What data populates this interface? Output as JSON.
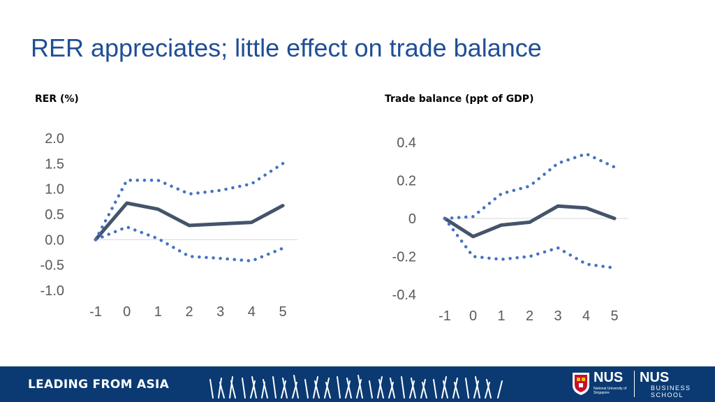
{
  "title": "RER appreciates; little effect on trade balance",
  "colors": {
    "title": "#1f4e97",
    "line": "#44546a",
    "band": "#4472c4",
    "footer": "#0b3a73"
  },
  "footer": {
    "tagline": "LEADING FROM ASIA",
    "nus_word": "NUS",
    "nus_subtitle": "National University of Singapore",
    "school_word": "NUS",
    "school_subtitle": "BUSINESS SCHOOL"
  },
  "chart_data": [
    {
      "type": "line",
      "label": "RER (%)",
      "x": [
        -1,
        0,
        1,
        2,
        3,
        4,
        5
      ],
      "ylim": [
        -1.0,
        2.0
      ],
      "yticks": [
        "2.0",
        "1.5",
        "1.0",
        "0.5",
        "0.0",
        "-0.5",
        "-1.0"
      ],
      "ytick_values": [
        2.0,
        1.5,
        1.0,
        0.5,
        0.0,
        -0.5,
        -1.0
      ],
      "xticks": [
        "-1",
        "0",
        "1",
        "2",
        "3",
        "4",
        "5"
      ],
      "series": [
        {
          "role": "estimate",
          "style": "solid",
          "values": [
            0.0,
            0.72,
            0.6,
            0.28,
            0.31,
            0.34,
            0.67
          ]
        },
        {
          "role": "upper",
          "style": "dotted",
          "values": [
            0.0,
            1.17,
            1.17,
            0.9,
            0.97,
            1.1,
            1.5
          ]
        },
        {
          "role": "lower",
          "style": "dotted",
          "values": [
            0.0,
            0.25,
            0.02,
            -0.33,
            -0.37,
            -0.42,
            -0.17
          ]
        }
      ]
    },
    {
      "type": "line",
      "label": "Trade balance (ppt of GDP)",
      "x": [
        -1,
        0,
        1,
        2,
        3,
        4,
        5
      ],
      "ylim": [
        -0.4,
        0.4
      ],
      "yticks": [
        "0.4",
        "0.2",
        "0",
        "-0.2",
        "-0.4"
      ],
      "ytick_values": [
        0.4,
        0.2,
        0.0,
        -0.2,
        -0.4
      ],
      "xticks": [
        "-1",
        "0",
        "1",
        "2",
        "3",
        "4",
        "5"
      ],
      "series": [
        {
          "role": "estimate",
          "style": "solid",
          "values": [
            0.0,
            -0.095,
            -0.035,
            -0.02,
            0.065,
            0.055,
            0.0
          ]
        },
        {
          "role": "upper",
          "style": "dotted",
          "values": [
            0.0,
            0.01,
            0.13,
            0.17,
            0.29,
            0.34,
            0.27
          ]
        },
        {
          "role": "lower",
          "style": "dotted",
          "values": [
            0.0,
            -0.2,
            -0.215,
            -0.2,
            -0.155,
            -0.24,
            -0.26
          ]
        }
      ]
    }
  ]
}
